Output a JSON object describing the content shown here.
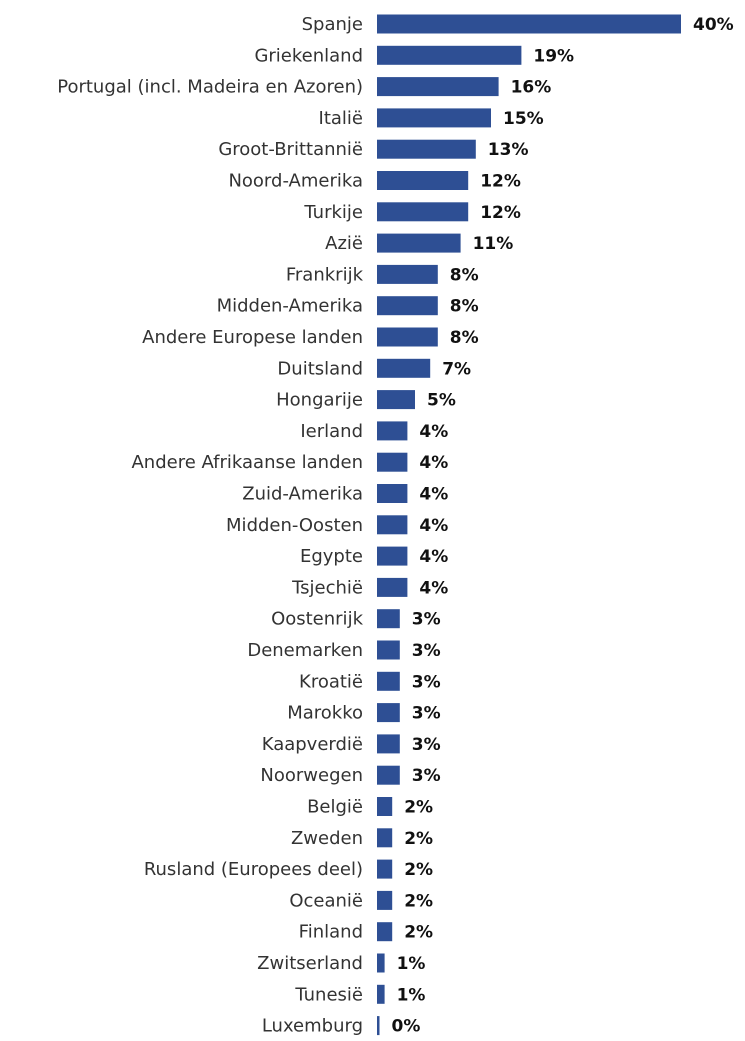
{
  "chart_data": {
    "type": "bar",
    "orientation": "horizontal",
    "title": "",
    "xlabel": "",
    "ylabel": "",
    "xlim": [
      0,
      40
    ],
    "grid": false,
    "legend": "none",
    "bar_color": "#2e4f94",
    "categories": [
      "Spanje",
      "Griekenland",
      "Portugal (incl. Madeira en Azoren)",
      "Italië",
      "Groot-Brittannië",
      "Noord-Amerika",
      "Turkije",
      "Azië",
      "Frankrijk",
      "Midden-Amerika",
      "Andere Europese landen",
      "Duitsland",
      "Hongarije",
      "Ierland",
      "Andere Afrikaanse landen",
      "Zuid-Amerika",
      "Midden-Oosten",
      "Egypte",
      "Tsjechië",
      "Oostenrijk",
      "Denemarken",
      "Kroatië",
      "Marokko",
      "Kaapverdië",
      "Noorwegen",
      "België",
      "Zweden",
      "Rusland (Europees deel)",
      "Oceanië",
      "Finland",
      "Zwitserland",
      "Tunesië",
      "Luxemburg"
    ],
    "values": [
      40,
      19,
      16,
      15,
      13,
      12,
      12,
      11,
      8,
      8,
      8,
      7,
      5,
      4,
      4,
      4,
      4,
      4,
      4,
      3,
      3,
      3,
      3,
      3,
      3,
      2,
      2,
      2,
      2,
      2,
      1,
      1,
      0
    ],
    "value_labels": [
      "40%",
      "19%",
      "16%",
      "15%",
      "13%",
      "12%",
      "12%",
      "11%",
      "8%",
      "8%",
      "8%",
      "7%",
      "5%",
      "4%",
      "4%",
      "4%",
      "4%",
      "4%",
      "4%",
      "3%",
      "3%",
      "3%",
      "3%",
      "3%",
      "3%",
      "2%",
      "2%",
      "2%",
      "2%",
      "2%",
      "1%",
      "1%",
      "0%"
    ]
  }
}
